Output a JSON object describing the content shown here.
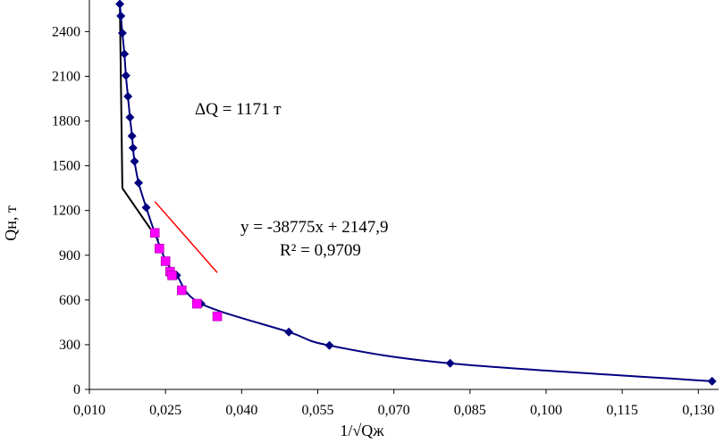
{
  "chart_data": {
    "type": "scatter",
    "xlabel": "1/√Qж",
    "ylabel": "Qн, т",
    "xlim": [
      0.01,
      0.134
    ],
    "ylim": [
      0,
      2600
    ],
    "x_ticks": [
      "0,010",
      "0,025",
      "0,040",
      "0,055",
      "0,070",
      "0,085",
      "0,100",
      "0,115",
      "0,130"
    ],
    "y_ticks": [
      "0",
      "300",
      "600",
      "900",
      "1200",
      "1500",
      "1800",
      "2100",
      "2400"
    ],
    "grid": false,
    "legend": "none",
    "colors": {
      "main_series": "#00007f",
      "fit_points": "#ff00ff",
      "trendline": "#ff0000",
      "construction": "#000000"
    },
    "series": [
      {
        "marker": "diamond",
        "color": "#00007f",
        "smooth_line": true,
        "points": [
          [
            0.016,
            2585
          ],
          [
            0.0162,
            2505
          ],
          [
            0.0165,
            2390
          ],
          [
            0.0169,
            2250
          ],
          [
            0.0172,
            2105
          ],
          [
            0.0176,
            1965
          ],
          [
            0.018,
            1825
          ],
          [
            0.0184,
            1700
          ],
          [
            0.0186,
            1620
          ],
          [
            0.0189,
            1530
          ],
          [
            0.0197,
            1385
          ],
          [
            0.0212,
            1220
          ],
          [
            0.0229,
            1050
          ],
          [
            0.0251,
            860
          ],
          [
            0.0272,
            765
          ],
          [
            0.032,
            575
          ],
          [
            0.0493,
            385
          ],
          [
            0.0573,
            295
          ],
          [
            0.0811,
            175
          ],
          [
            0.1327,
            55
          ]
        ]
      },
      {
        "marker": "square",
        "color": "#ff00ff",
        "points": [
          [
            0.0229,
            1050
          ],
          [
            0.0238,
            945
          ],
          [
            0.025,
            860
          ],
          [
            0.0259,
            790
          ],
          [
            0.0263,
            765
          ],
          [
            0.0282,
            665
          ],
          [
            0.0312,
            575
          ],
          [
            0.0352,
            490
          ]
        ]
      }
    ],
    "trendline": {
      "slope": -38775,
      "intercept": 2147.9,
      "x_range": [
        0.0229,
        0.0352
      ]
    },
    "construction_lines": [
      {
        "points": [
          [
            0.016,
            2580
          ],
          [
            0.0165,
            1350
          ]
        ]
      },
      {
        "points": [
          [
            0.0165,
            1350
          ],
          [
            0.0236,
            1000
          ]
        ]
      }
    ],
    "annotations": {
      "delta_q": "ΔQ = 1171 т",
      "equation": "y = -38775x + 2147,9",
      "r_squared": "R² = 0,9709"
    }
  }
}
